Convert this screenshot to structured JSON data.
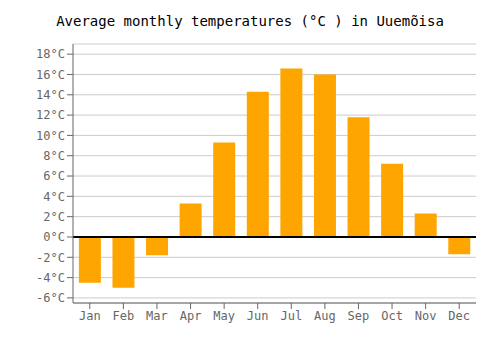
{
  "chart_data": {
    "type": "bar",
    "title": "Average monthly temperatures (°C ) in Uuemõisa",
    "categories": [
      "Jan",
      "Feb",
      "Mar",
      "Apr",
      "May",
      "Jun",
      "Jul",
      "Aug",
      "Sep",
      "Oct",
      "Nov",
      "Dec"
    ],
    "values": [
      -4.5,
      -5.0,
      -1.8,
      3.3,
      9.3,
      14.3,
      16.6,
      16.0,
      11.8,
      7.2,
      2.3,
      -1.7
    ],
    "color": "#FFA500",
    "ylim": [
      -6.5,
      19.0
    ],
    "yticks": [
      {
        "value": -6,
        "label": "-6°C"
      },
      {
        "value": -4,
        "label": "-4°C"
      },
      {
        "value": -2,
        "label": "-2°C"
      },
      {
        "value": 0,
        "label": "0°C"
      },
      {
        "value": 2,
        "label": "2°C"
      },
      {
        "value": 4,
        "label": "4°C"
      },
      {
        "value": 6,
        "label": "6°C"
      },
      {
        "value": 8,
        "label": "8°C"
      },
      {
        "value": 10,
        "label": "10°C"
      },
      {
        "value": 12,
        "label": "12°C"
      },
      {
        "value": 14,
        "label": "14°C"
      },
      {
        "value": 16,
        "label": "16°C"
      },
      {
        "value": 18,
        "label": "18°C"
      }
    ],
    "grid": true
  }
}
